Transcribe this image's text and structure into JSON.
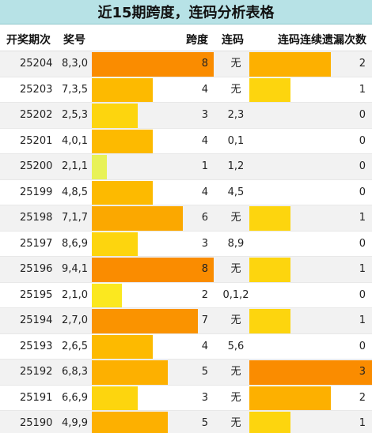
{
  "title": "近15期跨度，连码分析表格",
  "headers": {
    "period": "开奖期次",
    "number": "奖号",
    "span": "跨度",
    "consec": "连码",
    "miss": "连码连续遗漏次数"
  },
  "colors": {
    "span_1": "#e8f257",
    "span_2": "#fbe81f",
    "span_3": "#fdd50e",
    "span_4": "#fdba00",
    "span_5": "#fdb000",
    "span_6": "#fba800",
    "span_7": "#fa9300",
    "span_8": "#fa8c00",
    "miss_1": "#fdd50e",
    "miss_2": "#fdb000",
    "miss_3": "#fa8c00"
  },
  "chart_data": {
    "type": "table",
    "span_max": 9,
    "miss_max": 3,
    "rows": [
      {
        "period": "25204",
        "number": "8,3,0",
        "span": 8,
        "consec": "无",
        "miss": 2
      },
      {
        "period": "25203",
        "number": "7,3,5",
        "span": 4,
        "consec": "无",
        "miss": 1
      },
      {
        "period": "25202",
        "number": "2,5,3",
        "span": 3,
        "consec": "2,3",
        "miss": 0
      },
      {
        "period": "25201",
        "number": "4,0,1",
        "span": 4,
        "consec": "0,1",
        "miss": 0
      },
      {
        "period": "25200",
        "number": "2,1,1",
        "span": 1,
        "consec": "1,2",
        "miss": 0
      },
      {
        "period": "25199",
        "number": "4,8,5",
        "span": 4,
        "consec": "4,5",
        "miss": 0
      },
      {
        "period": "25198",
        "number": "7,1,7",
        "span": 6,
        "consec": "无",
        "miss": 1
      },
      {
        "period": "25197",
        "number": "8,6,9",
        "span": 3,
        "consec": "8,9",
        "miss": 0
      },
      {
        "period": "25196",
        "number": "9,4,1",
        "span": 8,
        "consec": "无",
        "miss": 1
      },
      {
        "period": "25195",
        "number": "2,1,0",
        "span": 2,
        "consec": "0,1,2",
        "miss": 0
      },
      {
        "period": "25194",
        "number": "2,7,0",
        "span": 7,
        "consec": "无",
        "miss": 1
      },
      {
        "period": "25193",
        "number": "2,6,5",
        "span": 4,
        "consec": "5,6",
        "miss": 0
      },
      {
        "period": "25192",
        "number": "6,8,3",
        "span": 5,
        "consec": "无",
        "miss": 3
      },
      {
        "period": "25191",
        "number": "6,6,9",
        "span": 3,
        "consec": "无",
        "miss": 2
      },
      {
        "period": "25190",
        "number": "4,9,9",
        "span": 5,
        "consec": "无",
        "miss": 1
      }
    ]
  }
}
